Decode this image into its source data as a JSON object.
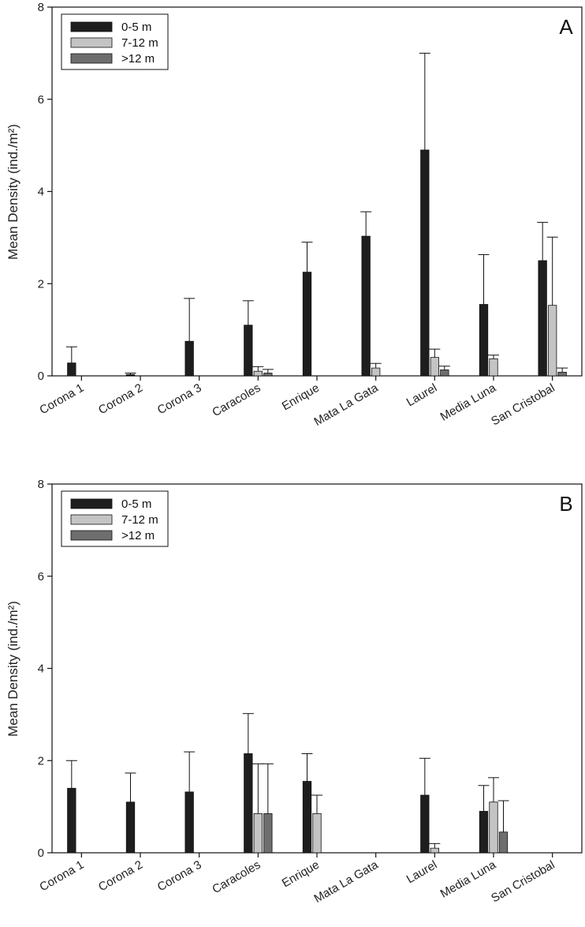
{
  "chart_data": [
    {
      "type": "bar",
      "panel_label": "A",
      "ylabel": "Mean Density (ind./m²)",
      "ylim": [
        0,
        8
      ],
      "yticks": [
        0,
        2,
        4,
        6,
        8
      ],
      "categories": [
        "Corona 1",
        "Corona 2",
        "Corona 3",
        "Caracoles",
        "Enrique",
        "Mata La Gata",
        "Laurel",
        "Media Luna",
        "San Cristobal"
      ],
      "legend_position": "top-left",
      "series": [
        {
          "name": "0-5 m",
          "color": "#1e1e1e",
          "values": [
            0.28,
            0.03,
            0.75,
            1.1,
            2.25,
            3.03,
            4.9,
            1.55,
            2.5
          ],
          "errors": [
            0.35,
            0.03,
            0.93,
            0.53,
            0.65,
            0.53,
            2.1,
            1.08,
            0.83
          ]
        },
        {
          "name": "7-12 m",
          "color": "#c4c4c4",
          "values": [
            0,
            0,
            0,
            0.1,
            0,
            0.17,
            0.4,
            0.37,
            1.53
          ],
          "errors": [
            0,
            0,
            0,
            0.1,
            0,
            0.1,
            0.18,
            0.08,
            1.48
          ]
        },
        {
          "name": ">12 m",
          "color": "#6e6e6e",
          "values": [
            0,
            0,
            0,
            0.06,
            0,
            0,
            0.13,
            0,
            0.08
          ],
          "errors": [
            0,
            0,
            0,
            0.08,
            0,
            0,
            0.08,
            0,
            0.09
          ]
        }
      ]
    },
    {
      "type": "bar",
      "panel_label": "B",
      "ylabel": "Mean Density (ind./m²)",
      "ylim": [
        0,
        8
      ],
      "yticks": [
        0,
        2,
        4,
        6,
        8
      ],
      "categories": [
        "Corona 1",
        "Corona 2",
        "Corona 3",
        "Caracoles",
        "Enrique",
        "Mata La Gata",
        "Laurel",
        "Media Luna",
        "San Cristobal"
      ],
      "legend_position": "top-left",
      "series": [
        {
          "name": "0-5 m",
          "color": "#1e1e1e",
          "values": [
            1.4,
            1.1,
            1.32,
            2.15,
            1.55,
            0,
            1.25,
            0.9,
            0
          ],
          "errors": [
            0.6,
            0.63,
            0.87,
            0.87,
            0.6,
            0,
            0.8,
            0.56,
            0
          ]
        },
        {
          "name": "7-12 m",
          "color": "#c4c4c4",
          "values": [
            0,
            0,
            0,
            0.85,
            0.85,
            0,
            0.1,
            1.1,
            0
          ],
          "errors": [
            0,
            0,
            0,
            1.08,
            0.4,
            0,
            0.1,
            0.53,
            0
          ]
        },
        {
          "name": ">12 m",
          "color": "#6e6e6e",
          "values": [
            0,
            0,
            0,
            0.85,
            0,
            0,
            0,
            0.45,
            0
          ],
          "errors": [
            0,
            0,
            0,
            1.08,
            0,
            0,
            0,
            0.68,
            0
          ]
        }
      ]
    }
  ]
}
